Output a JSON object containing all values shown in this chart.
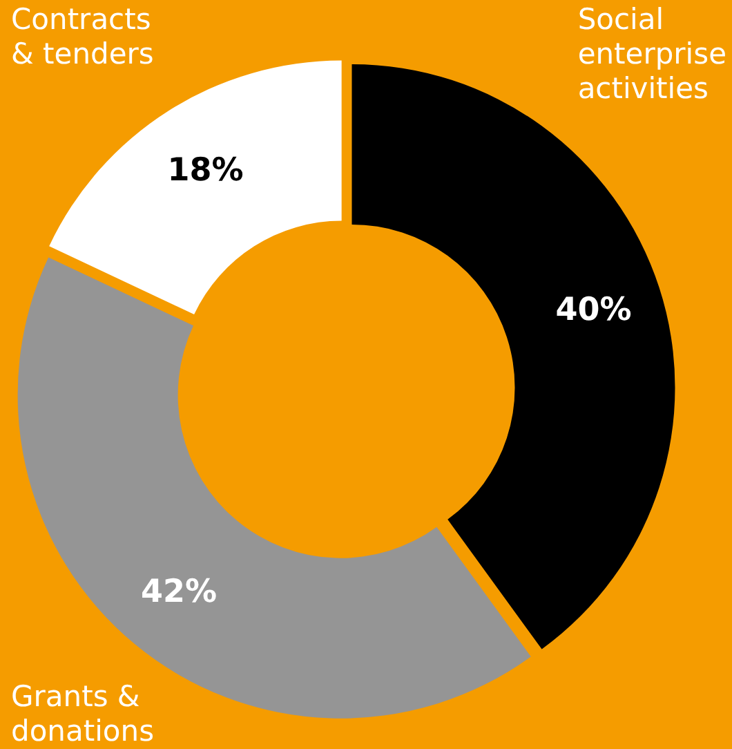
{
  "chart_data": {
    "type": "donut",
    "categories": [
      "Social enterprise activities",
      "Grants & donations",
      "Contracts & tenders"
    ],
    "values": [
      40,
      42,
      18
    ],
    "colors": [
      "#000000",
      "#959595",
      "#ffffff"
    ],
    "value_labels": [
      "40%",
      "42%",
      "18%"
    ]
  }
}
